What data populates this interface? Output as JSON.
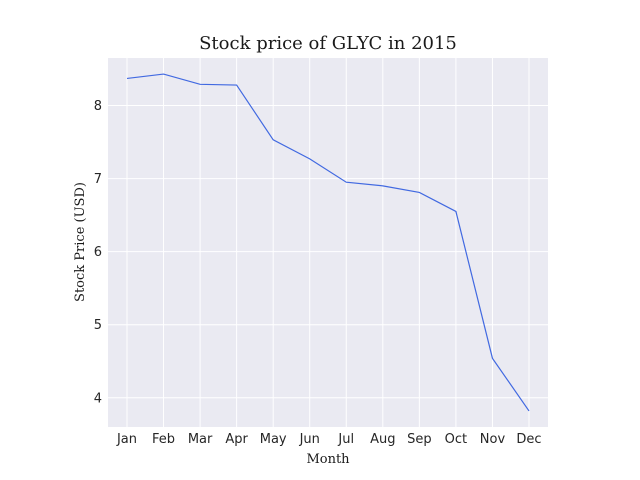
{
  "chart_data": {
    "type": "line",
    "title": "Stock price of GLYC in 2015",
    "xlabel": "Month",
    "ylabel": "Stock Price (USD)",
    "categories": [
      "Jan",
      "Feb",
      "Mar",
      "Apr",
      "May",
      "Jun",
      "Jul",
      "Aug",
      "Sep",
      "Oct",
      "Nov",
      "Dec"
    ],
    "series": [
      {
        "values": [
          8.37,
          8.43,
          8.29,
          8.28,
          7.53,
          7.27,
          6.95,
          6.9,
          6.81,
          6.55,
          4.54,
          3.82
        ]
      }
    ],
    "ylim": [
      3.6,
      8.65
    ],
    "yticks": [
      4,
      5,
      6,
      7,
      8
    ],
    "grid": true,
    "colors": {
      "line": "#4169e1",
      "plot_background": "#eaeaf2",
      "grid": "#ffffff"
    }
  }
}
